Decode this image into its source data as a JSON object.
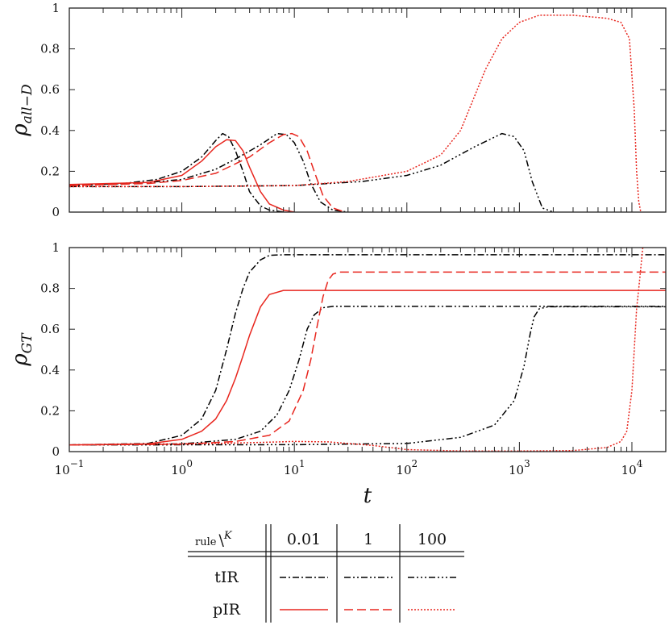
{
  "chart_data": {
    "type": "line",
    "x_scale": "log",
    "xlim": [
      0.1,
      20000
    ],
    "xlabel": "t",
    "x_ticks": [
      {
        "value": 0.1,
        "base": "10",
        "exp": "−1"
      },
      {
        "value": 1,
        "base": "10",
        "exp": "0"
      },
      {
        "value": 10,
        "base": "10",
        "exp": "1"
      },
      {
        "value": 100,
        "base": "10",
        "exp": "2"
      },
      {
        "value": 1000,
        "base": "10",
        "exp": "3"
      },
      {
        "value": 10000,
        "base": "10",
        "exp": "4"
      }
    ],
    "panels": [
      {
        "id": "all-d",
        "ylabel_main": "ρ",
        "ylabel_sub": "all−D",
        "ylim": [
          0,
          1
        ],
        "y_ticks": [
          "0",
          "0.2",
          "0.4",
          "0.6",
          "0.8",
          "1"
        ],
        "series": [
          {
            "rule": "tIR",
            "K": "0.01",
            "color": "#000000",
            "dash": "8,3,2,3",
            "x": [
              0.1,
              0.3,
              0.6,
              1,
              1.5,
              2,
              2.3,
              2.6,
              3,
              3.5,
              4,
              5,
              6,
              8
            ],
            "y": [
              0.13,
              0.14,
              0.16,
              0.2,
              0.27,
              0.35,
              0.385,
              0.37,
              0.3,
              0.2,
              0.1,
              0.03,
              0.01,
              0
            ]
          },
          {
            "rule": "tIR",
            "K": "1",
            "color": "#000000",
            "dash": "8,3,2,3,2,3",
            "x": [
              0.1,
              0.5,
              1,
              2,
              3,
              5,
              7,
              8.5,
              10,
              12,
              14,
              17,
              22,
              30
            ],
            "y": [
              0.13,
              0.145,
              0.16,
              0.21,
              0.26,
              0.33,
              0.385,
              0.38,
              0.34,
              0.25,
              0.14,
              0.05,
              0.01,
              0
            ]
          },
          {
            "rule": "tIR",
            "K": "100",
            "color": "#000000",
            "dash": "8,3,2,3,2,3,2,3",
            "x": [
              0.1,
              1,
              10,
              40,
              100,
              200,
              400,
              700,
              900,
              1100,
              1300,
              1600,
              2000
            ],
            "y": [
              0.125,
              0.125,
              0.13,
              0.15,
              0.18,
              0.23,
              0.32,
              0.385,
              0.37,
              0.3,
              0.15,
              0.02,
              0
            ]
          },
          {
            "rule": "pIR",
            "K": "0.01",
            "color": "#e8261e",
            "dash": "",
            "x": [
              0.1,
              0.5,
              1,
              1.5,
              2,
              2.5,
              3,
              3.5,
              4,
              5,
              6,
              8,
              10
            ],
            "y": [
              0.135,
              0.145,
              0.18,
              0.25,
              0.32,
              0.355,
              0.35,
              0.3,
              0.22,
              0.1,
              0.04,
              0.01,
              0
            ]
          },
          {
            "rule": "pIR",
            "K": "1",
            "color": "#e8261e",
            "dash": "11,5",
            "x": [
              0.1,
              0.5,
              1,
              2,
              4,
              6,
              8,
              9.5,
              11,
              13,
              15,
              18,
              22,
              28
            ],
            "y": [
              0.13,
              0.14,
              0.155,
              0.19,
              0.27,
              0.34,
              0.38,
              0.385,
              0.37,
              0.3,
              0.2,
              0.08,
              0.02,
              0
            ]
          },
          {
            "rule": "pIR",
            "K": "100",
            "color": "#e8261e",
            "dash": "2,2",
            "x": [
              0.1,
              1,
              10,
              30,
              100,
              200,
              300,
              500,
              700,
              1000,
              1500,
              3000,
              6000,
              8000,
              9500,
              10500,
              11000,
              11500,
              12000
            ],
            "y": [
              0.125,
              0.125,
              0.13,
              0.15,
              0.2,
              0.28,
              0.4,
              0.7,
              0.85,
              0.93,
              0.965,
              0.965,
              0.95,
              0.93,
              0.85,
              0.5,
              0.2,
              0.05,
              0
            ]
          }
        ]
      },
      {
        "id": "gt",
        "ylabel_main": "ρ",
        "ylabel_sub": "GT",
        "ylim": [
          0,
          1
        ],
        "y_ticks": [
          "0",
          "0.2",
          "0.4",
          "0.6",
          "0.8",
          "1"
        ],
        "series": [
          {
            "rule": "tIR",
            "K": "0.01",
            "color": "#000000",
            "dash": "8,3,2,3",
            "x": [
              0.1,
              0.5,
              1,
              1.5,
              2,
              2.5,
              3,
              3.5,
              4,
              5,
              6,
              8,
              20000
            ],
            "y": [
              0.033,
              0.04,
              0.08,
              0.16,
              0.3,
              0.5,
              0.68,
              0.8,
              0.88,
              0.94,
              0.962,
              0.965,
              0.965
            ]
          },
          {
            "rule": "tIR",
            "K": "1",
            "color": "#000000",
            "dash": "8,3,2,3,2,3",
            "x": [
              0.1,
              1,
              3,
              5,
              7,
              9,
              11,
              13,
              15,
              18,
              22,
              20000
            ],
            "y": [
              0.033,
              0.038,
              0.06,
              0.1,
              0.18,
              0.3,
              0.45,
              0.6,
              0.67,
              0.705,
              0.712,
              0.712
            ]
          },
          {
            "rule": "tIR",
            "K": "100",
            "color": "#000000",
            "dash": "8,3,2,3,2,3,2,3",
            "x": [
              0.1,
              10,
              100,
              300,
              600,
              900,
              1100,
              1250,
              1350,
              1500,
              1800,
              20000
            ],
            "y": [
              0.033,
              0.034,
              0.04,
              0.07,
              0.13,
              0.25,
              0.42,
              0.58,
              0.66,
              0.7,
              0.71,
              0.71
            ]
          },
          {
            "rule": "pIR",
            "K": "0.01",
            "color": "#e8261e",
            "dash": "",
            "x": [
              0.1,
              0.5,
              1,
              1.5,
              2,
              2.5,
              3,
              3.5,
              4,
              5,
              6,
              8,
              20000
            ],
            "y": [
              0.033,
              0.038,
              0.06,
              0.1,
              0.16,
              0.25,
              0.36,
              0.47,
              0.57,
              0.71,
              0.77,
              0.79,
              0.79
            ]
          },
          {
            "rule": "pIR",
            "K": "1",
            "color": "#e8261e",
            "dash": "11,5",
            "x": [
              0.1,
              1,
              3,
              6,
              9,
              12,
              14,
              16,
              18,
              20,
              22,
              25,
              20000
            ],
            "y": [
              0.033,
              0.036,
              0.05,
              0.08,
              0.15,
              0.3,
              0.45,
              0.62,
              0.76,
              0.84,
              0.87,
              0.88,
              0.88
            ]
          },
          {
            "rule": "pIR",
            "K": "100",
            "color": "#e8261e",
            "dash": "2,2",
            "x": [
              0.1,
              2,
              5,
              10,
              20,
              50,
              100,
              300,
              1000,
              3000,
              6000,
              8000,
              9000,
              10000,
              10500,
              11000,
              11500,
              12500
            ],
            "y": [
              0.033,
              0.04,
              0.045,
              0.05,
              0.048,
              0.03,
              0.01,
              0.003,
              0.003,
              0.005,
              0.02,
              0.05,
              0.1,
              0.3,
              0.5,
              0.7,
              0.8,
              1.0
            ]
          }
        ]
      }
    ],
    "legend": {
      "header_rule": "rule",
      "header_k": "K",
      "columns": [
        "0.01",
        "1",
        "100"
      ],
      "rows": [
        "tIR",
        "pIR"
      ]
    }
  }
}
